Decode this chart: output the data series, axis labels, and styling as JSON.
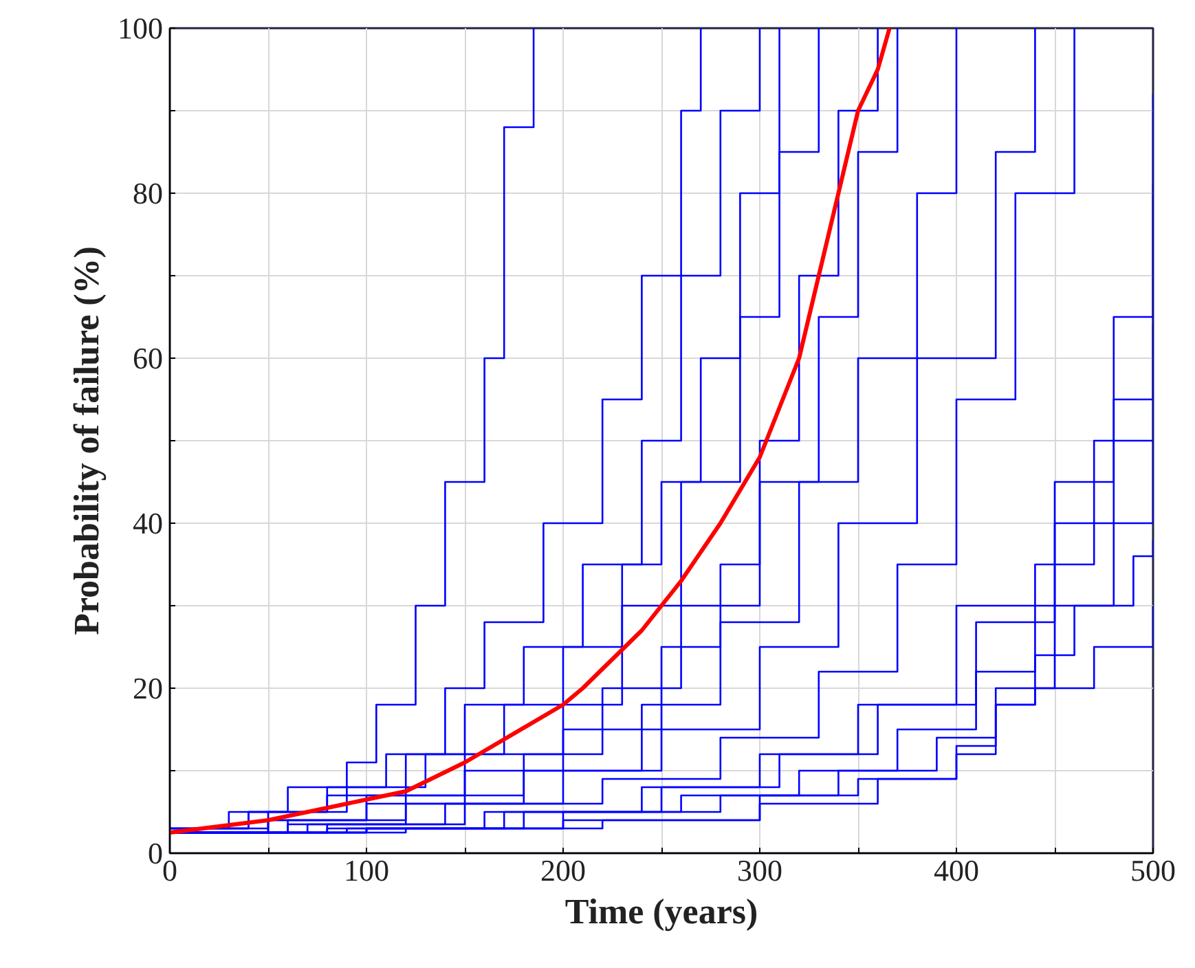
{
  "chart_data": {
    "type": "step",
    "xlabel": "Time (years)",
    "ylabel": "Probability of failure (%)",
    "xlim": [
      0,
      500
    ],
    "ylim": [
      0,
      100
    ],
    "xticks": [
      0,
      {
        "value": 50,
        "label": null
      },
      100,
      {
        "value": 150,
        "label": null
      },
      200,
      {
        "value": 250,
        "label": null
      },
      300,
      {
        "value": 350,
        "label": null
      },
      400,
      {
        "value": 450,
        "label": null
      },
      500
    ],
    "yticks": [
      0,
      {
        "value": 10,
        "label": null
      },
      20,
      {
        "value": 30,
        "label": null
      },
      40,
      {
        "value": 50,
        "label": null
      },
      60,
      {
        "value": 70,
        "label": null
      },
      80,
      {
        "value": 90,
        "label": null
      },
      100
    ],
    "grid": true,
    "line_style": "solid",
    "series": [
      {
        "color": "#0000ff",
        "x": [
          0,
          30,
          60,
          90,
          105,
          125,
          140,
          160,
          170,
          185
        ],
        "values": [
          3,
          5,
          8,
          11,
          18,
          30,
          45,
          60,
          88,
          100
        ]
      },
      {
        "color": "#0000ff",
        "x": [
          0,
          40,
          80,
          120,
          150,
          180,
          210,
          240,
          260,
          280,
          300
        ],
        "values": [
          3,
          5,
          7,
          12,
          18,
          25,
          35,
          50,
          70,
          90,
          100
        ]
      },
      {
        "color": "#0000ff",
        "x": [
          0,
          50,
          100,
          150,
          200,
          230,
          260,
          290,
          310,
          330
        ],
        "values": [
          2.5,
          4,
          7,
          12,
          18,
          30,
          45,
          65,
          85,
          100
        ]
      },
      {
        "color": "#0000ff",
        "x": [
          0,
          50,
          100,
          150,
          200,
          250,
          280,
          300,
          320,
          340,
          360
        ],
        "values": [
          2.5,
          4,
          6,
          10,
          15,
          25,
          35,
          50,
          70,
          90,
          100
        ]
      },
      {
        "color": "#0000ff",
        "x": [
          0,
          60,
          120,
          180,
          220,
          260,
          300,
          330,
          350,
          370
        ],
        "values": [
          2.5,
          4,
          7,
          12,
          20,
          30,
          45,
          65,
          85,
          100
        ]
      },
      {
        "color": "#0000ff",
        "x": [
          0,
          60,
          120,
          180,
          240,
          280,
          320,
          350,
          380,
          400
        ],
        "values": [
          2.5,
          3.5,
          6,
          10,
          18,
          28,
          45,
          60,
          80,
          100
        ]
      },
      {
        "color": "#0000ff",
        "x": [
          0,
          70,
          140,
          200,
          250,
          300,
          340,
          380,
          420,
          440
        ],
        "values": [
          2.5,
          3.5,
          6,
          10,
          15,
          25,
          40,
          60,
          85,
          100
        ]
      },
      {
        "color": "#0000ff",
        "x": [
          0,
          80,
          150,
          220,
          280,
          330,
          370,
          400,
          430,
          460
        ],
        "values": [
          2.5,
          3.5,
          6,
          9,
          14,
          22,
          35,
          55,
          80,
          100
        ]
      },
      {
        "color": "#0000ff",
        "x": [
          0,
          80,
          160,
          240,
          300,
          350,
          400,
          450,
          480,
          500
        ],
        "values": [
          2.5,
          3,
          5,
          8,
          12,
          18,
          30,
          45,
          65,
          92
        ]
      },
      {
        "color": "#0000ff",
        "x": [
          0,
          90,
          170,
          250,
          310,
          360,
          410,
          450,
          480,
          500
        ],
        "values": [
          2.5,
          3,
          5,
          8,
          12,
          18,
          28,
          40,
          55,
          81
        ]
      },
      {
        "color": "#0000ff",
        "x": [
          0,
          100,
          180,
          260,
          320,
          370,
          410,
          440,
          470,
          500
        ],
        "values": [
          2.5,
          3,
          5,
          7,
          10,
          15,
          22,
          35,
          50,
          64
        ]
      },
      {
        "color": "#0000ff",
        "x": [
          0,
          100,
          200,
          280,
          340,
          390,
          420,
          450,
          480,
          500
        ],
        "values": [
          2.5,
          3,
          5,
          7,
          10,
          14,
          20,
          30,
          40,
          50
        ]
      },
      {
        "color": "#0000ff",
        "x": [
          0,
          100,
          200,
          300,
          350,
          400,
          420,
          440,
          460,
          490,
          500
        ],
        "values": [
          2.5,
          3,
          4,
          7,
          9,
          13,
          18,
          24,
          30,
          36,
          38
        ]
      },
      {
        "color": "#0000ff",
        "x": [
          0,
          120,
          220,
          300,
          360,
          400,
          420,
          440,
          470,
          500
        ],
        "values": [
          2.5,
          3,
          4,
          6,
          9,
          12,
          18,
          20,
          25,
          30
        ]
      },
      {
        "color": "#0000ff",
        "x": [
          0,
          40,
          80,
          110,
          140,
          160,
          190,
          220,
          240,
          260,
          270
        ],
        "values": [
          3,
          5,
          8,
          12,
          20,
          28,
          40,
          55,
          70,
          90,
          100
        ]
      },
      {
        "color": "#0000ff",
        "x": [
          0,
          50,
          90,
          130,
          170,
          200,
          230,
          250,
          270,
          290,
          310
        ],
        "values": [
          3,
          5,
          8,
          12,
          18,
          25,
          35,
          45,
          60,
          80,
          100
        ]
      },
      {
        "type": "line",
        "color": "#ff0000",
        "x": [
          0,
          50,
          100,
          120,
          150,
          200,
          210,
          240,
          260,
          280,
          300,
          320,
          330,
          340,
          350,
          360,
          366
        ],
        "values": [
          2.5,
          4,
          6.5,
          7.5,
          11,
          18,
          20,
          27,
          33,
          40,
          48,
          60,
          70,
          80,
          90,
          95,
          100
        ]
      }
    ]
  }
}
